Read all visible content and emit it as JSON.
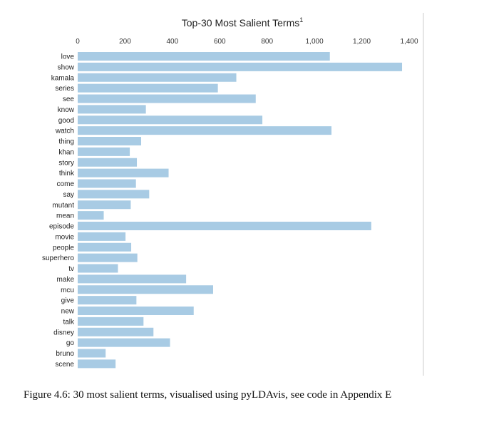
{
  "chart_data": {
    "type": "bar",
    "orientation": "horizontal",
    "title": "Top-30 Most Salient Terms",
    "title_superscript": "1",
    "xlim": [
      0,
      1400
    ],
    "x_ticks": [
      0,
      200,
      400,
      600,
      800,
      1000,
      1200,
      1400
    ],
    "x_tick_labels": [
      "0",
      "200",
      "400",
      "600",
      "800",
      "1,000",
      "1,200",
      "1,400"
    ],
    "axis_position": "top",
    "grid": false,
    "bar_color": "#a8cbe4",
    "categories": [
      "love",
      "show",
      "kamala",
      "series",
      "see",
      "know",
      "good",
      "watch",
      "thing",
      "khan",
      "story",
      "think",
      "come",
      "say",
      "mutant",
      "mean",
      "episode",
      "movie",
      "people",
      "superhero",
      "tv",
      "make",
      "mcu",
      "give",
      "new",
      "talk",
      "disney",
      "go",
      "bruno",
      "scene"
    ],
    "values": [
      1065,
      1370,
      670,
      592,
      752,
      288,
      780,
      1072,
      268,
      220,
      250,
      384,
      246,
      302,
      224,
      110,
      1240,
      202,
      226,
      252,
      170,
      458,
      572,
      248,
      490,
      278,
      320,
      390,
      118,
      160
    ]
  },
  "caption": "Figure 4.6: 30 most salient terms, visualised using pyLDAvis, see code in Appendix E"
}
